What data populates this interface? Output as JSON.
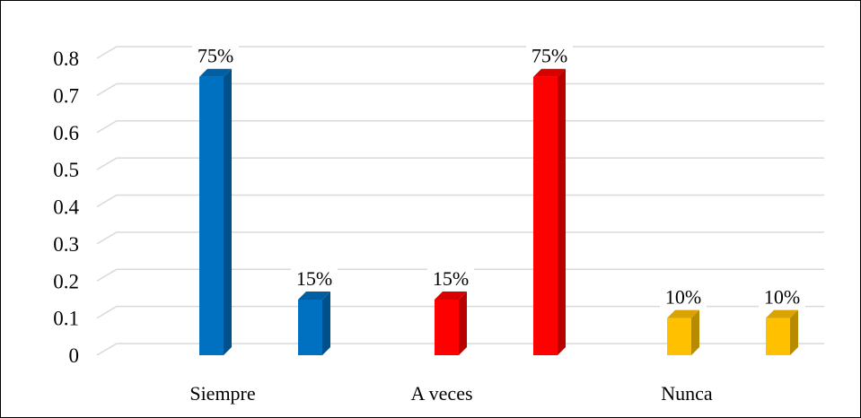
{
  "chart_data": {
    "type": "bar",
    "style": "3d-column",
    "categories": [
      "Siempre",
      "A veces",
      "Nunca"
    ],
    "bars": [
      {
        "category": "Siempre",
        "value": 0.75,
        "label": "75%",
        "color": "#0070C0"
      },
      {
        "category": "Siempre",
        "value": 0.15,
        "label": "15%",
        "color": "#0070C0"
      },
      {
        "category": "A veces",
        "value": 0.15,
        "label": "15%",
        "color": "#FF0000"
      },
      {
        "category": "A veces",
        "value": 0.75,
        "label": "75%",
        "color": "#FF0000"
      },
      {
        "category": "Nunca",
        "value": 0.1,
        "label": "10%",
        "color": "#FFC000"
      },
      {
        "category": "Nunca",
        "value": 0.1,
        "label": "10%",
        "color": "#FFC000"
      }
    ],
    "yticks": [
      "0",
      "0.1",
      "0.2",
      "0.3",
      "0.4",
      "0.5",
      "0.6",
      "0.7",
      "0.8"
    ],
    "ylim": [
      0,
      0.8
    ],
    "grid": true,
    "legend": "none",
    "title": "",
    "xlabel": "",
    "ylabel": ""
  }
}
